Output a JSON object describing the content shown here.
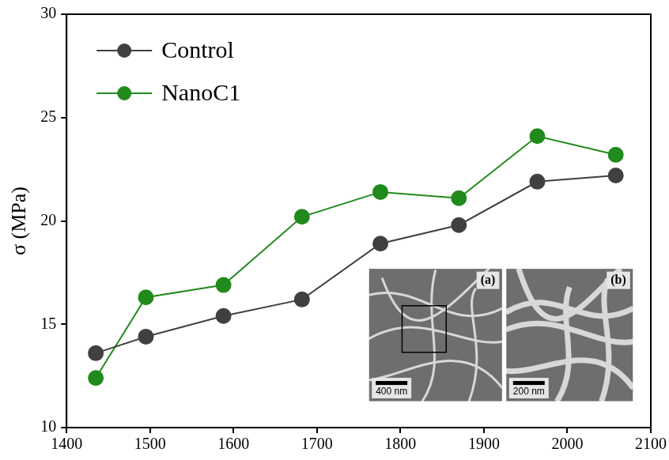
{
  "chart_data": {
    "type": "line",
    "y_label": "σ (MPa)",
    "x": [
      1435,
      1495,
      1588,
      1682,
      1776,
      1870,
      1964,
      2058
    ],
    "series": [
      {
        "name": "Control",
        "color": "#404040",
        "marker": "circle",
        "line_style": "solid",
        "values": [
          13.6,
          14.4,
          15.4,
          16.2,
          18.9,
          19.8,
          21.9,
          22.2
        ]
      },
      {
        "name": "NanoC1",
        "color": "#218a1c",
        "marker": "circle",
        "line_style": "solid",
        "values": [
          12.4,
          16.3,
          16.9,
          20.2,
          21.4,
          21.1,
          24.1,
          23.2
        ]
      }
    ],
    "xlim": [
      1400,
      2100
    ],
    "xticks": [
      1400,
      1500,
      1600,
      1700,
      1800,
      1900,
      2000,
      2100
    ],
    "ylim": [
      10,
      30
    ],
    "yticks": [
      10,
      15,
      20,
      25,
      30
    ],
    "grid": false,
    "legend": "upper left",
    "insets": [
      {
        "label": "(a)",
        "scale_bar": "400 nm"
      },
      {
        "label": "(b)",
        "scale_bar": "200 nm"
      }
    ]
  }
}
